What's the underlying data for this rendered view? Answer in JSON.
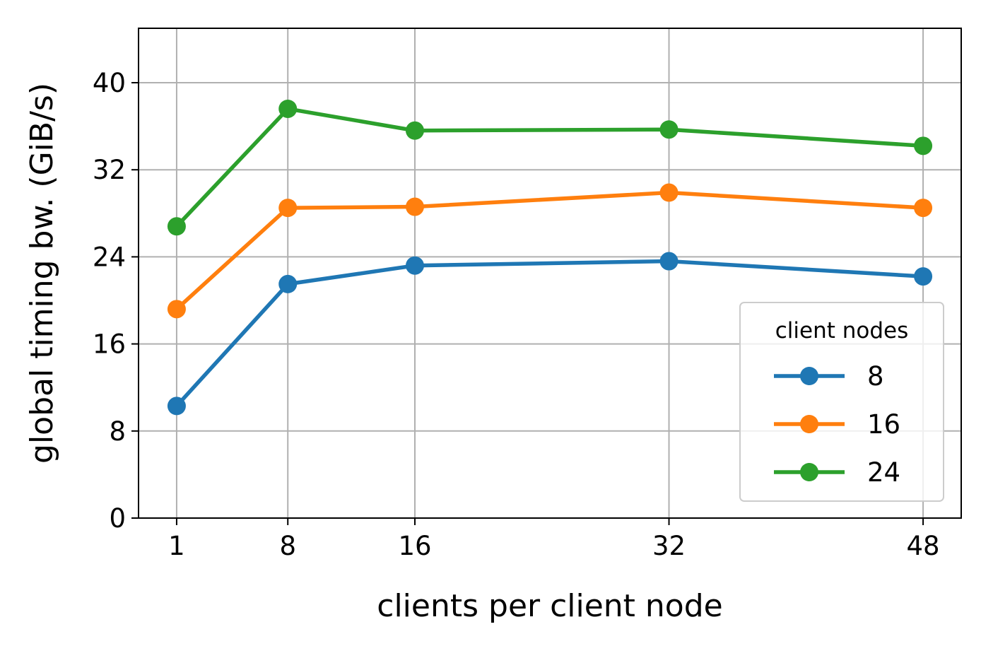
{
  "chart_data": {
    "type": "line",
    "xlabel": "clients per client node",
    "ylabel": "global timing bw. (GiB/s)",
    "x": [
      1,
      8,
      16,
      32,
      48
    ],
    "xticks": [
      "1",
      "8",
      "16",
      "32",
      "48"
    ],
    "xlim": [
      -1.4,
      50.4
    ],
    "yticks": [
      "0",
      "8",
      "16",
      "24",
      "32",
      "40"
    ],
    "ytick_values": [
      0,
      8,
      16,
      24,
      32,
      40
    ],
    "ylim": [
      0,
      45
    ],
    "grid": true,
    "legend": {
      "title": "client nodes",
      "placement": "lower-right"
    },
    "series": [
      {
        "name": "8",
        "color": "#1f77b4",
        "values": [
          10.3,
          21.5,
          23.2,
          23.6,
          22.2
        ]
      },
      {
        "name": "16",
        "color": "#ff7f0e",
        "values": [
          19.2,
          28.5,
          28.6,
          29.9,
          28.5
        ]
      },
      {
        "name": "24",
        "color": "#2ca02c",
        "values": [
          26.8,
          37.6,
          35.6,
          35.7,
          34.2
        ]
      }
    ]
  }
}
